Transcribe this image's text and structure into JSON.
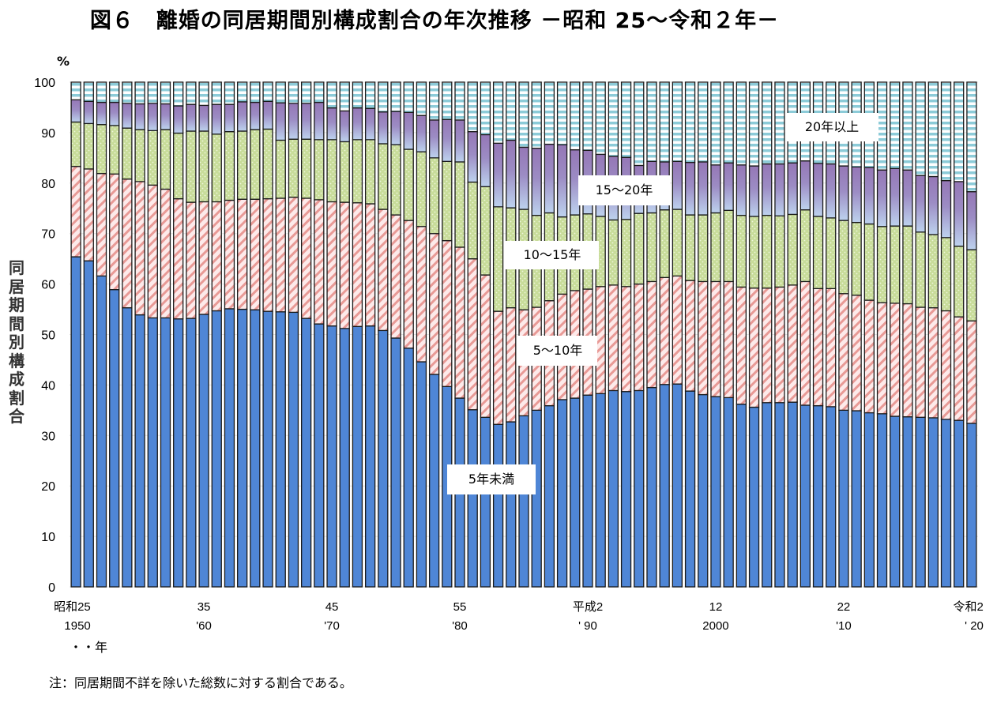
{
  "title": "図６　離婚の同居期間別構成割合の年次推移 －昭和 25～令和２年－",
  "footnote": "注：同居期間不詳を除いた総数に対する割合である。",
  "unit_note": "・・年",
  "chart_data": {
    "type": "bar",
    "stacked": true,
    "title": "図６　離婚の同居期間別構成割合の年次推移 －昭和 25～令和２年－",
    "ylabel": "同居期間別構成割合",
    "yunit": "%",
    "ylim": [
      0,
      100
    ],
    "yticks": [
      0,
      10,
      20,
      30,
      40,
      50,
      60,
      70,
      80,
      90,
      100
    ],
    "grid": true,
    "legend": "inline-labels",
    "x": [
      1950,
      1951,
      1952,
      1953,
      1954,
      1955,
      1956,
      1957,
      1958,
      1959,
      1960,
      1961,
      1962,
      1963,
      1964,
      1965,
      1966,
      1967,
      1968,
      1969,
      1970,
      1971,
      1972,
      1973,
      1974,
      1975,
      1976,
      1977,
      1978,
      1979,
      1980,
      1981,
      1982,
      1983,
      1984,
      1985,
      1986,
      1987,
      1988,
      1989,
      1990,
      1991,
      1992,
      1993,
      1994,
      1995,
      1996,
      1997,
      1998,
      1999,
      2000,
      2001,
      2002,
      2003,
      2004,
      2005,
      2006,
      2007,
      2008,
      2009,
      2010,
      2011,
      2012,
      2013,
      2014,
      2015,
      2016,
      2017,
      2018,
      2019,
      2020
    ],
    "xtick_labels": [
      {
        "x": 1950,
        "line1": "昭和25",
        "line2": "1950"
      },
      {
        "x": 1960,
        "line1": "35",
        "line2": "'60"
      },
      {
        "x": 1970,
        "line1": "45",
        "line2": "'70"
      },
      {
        "x": 1980,
        "line1": "55",
        "line2": "'80"
      },
      {
        "x": 1990,
        "line1": "平成2",
        "line2": "' 90"
      },
      {
        "x": 2000,
        "line1": "12",
        "line2": "2000"
      },
      {
        "x": 2010,
        "line1": "22",
        "line2": "'10"
      },
      {
        "x": 2020,
        "line1": "令和2",
        "line2": "' 20"
      }
    ],
    "series": [
      {
        "name": "5年未満",
        "color": "#4f86d6",
        "pattern": "solid",
        "values": [
          65.4,
          64.6,
          61.6,
          58.9,
          55.3,
          53.9,
          53.3,
          53.3,
          53.1,
          53.2,
          54.0,
          54.7,
          55.1,
          55.0,
          54.9,
          54.6,
          54.5,
          54.4,
          53.2,
          52.1,
          51.7,
          51.2,
          51.6,
          51.7,
          50.8,
          49.3,
          47.3,
          44.6,
          42.1,
          39.7,
          37.4,
          35.1,
          33.6,
          32.2,
          32.7,
          33.9,
          35.0,
          35.9,
          37.1,
          37.4,
          38.0,
          38.3,
          38.9,
          38.7,
          38.9,
          39.5,
          40.1,
          40.2,
          38.8,
          38.1,
          37.7,
          37.5,
          36.2,
          35.6,
          36.5,
          36.5,
          36.6,
          36.0,
          35.9,
          35.7,
          35.0,
          34.9,
          34.5,
          34.3,
          33.8,
          33.7,
          33.6,
          33.5,
          33.2,
          33.0,
          32.4
        ]
      },
      {
        "name": "5～10年",
        "color": "#e8817c",
        "pattern": "diagonal",
        "values": [
          17.9,
          18.2,
          20.3,
          22.9,
          25.5,
          26.4,
          26.3,
          25.5,
          23.8,
          23.0,
          22.3,
          21.6,
          21.5,
          21.8,
          21.9,
          22.3,
          22.5,
          22.8,
          23.8,
          24.6,
          24.6,
          25.0,
          24.5,
          24.2,
          24.0,
          24.4,
          25.3,
          26.8,
          27.9,
          28.9,
          29.9,
          29.9,
          28.2,
          22.4,
          22.6,
          21.0,
          20.4,
          20.8,
          20.9,
          21.3,
          21.0,
          21.2,
          20.9,
          20.8,
          21.1,
          21.0,
          21.2,
          21.4,
          21.9,
          22.4,
          22.8,
          23.0,
          23.2,
          23.6,
          22.7,
          22.9,
          23.2,
          24.5,
          23.2,
          23.4,
          23.1,
          22.9,
          22.3,
          22.0,
          22.4,
          22.4,
          21.8,
          21.8,
          21.5,
          20.5,
          20.3
        ]
      },
      {
        "name": "10～15年",
        "color": "#c5dc98",
        "pattern": "dots",
        "values": [
          8.8,
          9.0,
          9.7,
          9.6,
          10.1,
          10.3,
          10.8,
          11.8,
          13.0,
          14.1,
          14.0,
          13.4,
          13.6,
          13.5,
          13.8,
          13.8,
          11.5,
          11.5,
          11.7,
          11.9,
          12.3,
          12.0,
          12.5,
          12.7,
          13.0,
          13.9,
          14.1,
          14.8,
          15.0,
          15.7,
          16.9,
          15.2,
          17.5,
          20.7,
          19.8,
          19.9,
          18.2,
          17.4,
          15.3,
          15.0,
          14.9,
          13.9,
          12.9,
          13.3,
          14.0,
          13.6,
          13.4,
          13.2,
          13.0,
          13.2,
          13.6,
          14.1,
          14.2,
          14.2,
          14.4,
          14.1,
          14.0,
          14.2,
          14.3,
          14.0,
          14.5,
          14.4,
          15.1,
          15.1,
          15.3,
          15.4,
          14.9,
          14.5,
          14.5,
          14.0,
          14.1
        ]
      },
      {
        "name": "15～20年",
        "color": "#9b86c0",
        "pattern": "gradient",
        "values": [
          4.4,
          4.4,
          4.4,
          4.6,
          4.9,
          5.1,
          5.4,
          5.1,
          5.4,
          5.3,
          5.1,
          5.9,
          5.4,
          5.8,
          5.4,
          5.5,
          7.4,
          7.1,
          7.1,
          7.4,
          6.3,
          6.1,
          6.3,
          6.2,
          6.3,
          6.6,
          7.3,
          7.2,
          7.5,
          8.3,
          8.3,
          10.0,
          10.3,
          12.6,
          13.4,
          12.3,
          13.3,
          13.6,
          14.3,
          12.9,
          12.6,
          12.3,
          12.6,
          12.3,
          9.5,
          10.2,
          9.5,
          9.5,
          10.4,
          10.5,
          9.5,
          9.4,
          10.0,
          10.0,
          10.2,
          10.3,
          10.2,
          9.7,
          10.5,
          10.7,
          10.8,
          11.0,
          11.2,
          11.2,
          11.4,
          11.1,
          11.2,
          11.5,
          11.3,
          12.8,
          11.5
        ]
      },
      {
        "name": "20年以上",
        "color": "#8ccbd8",
        "pattern": "horizontal",
        "values": [
          3.5,
          3.8,
          4.0,
          4.0,
          4.2,
          4.3,
          4.2,
          4.3,
          4.7,
          4.4,
          4.6,
          4.4,
          4.4,
          3.9,
          4.0,
          3.8,
          4.1,
          4.2,
          4.2,
          4.0,
          5.1,
          5.7,
          5.1,
          5.2,
          5.9,
          5.8,
          6.0,
          6.6,
          7.5,
          7.4,
          7.5,
          9.8,
          10.4,
          12.1,
          11.5,
          12.9,
          13.1,
          12.3,
          12.4,
          13.4,
          13.5,
          14.3,
          14.7,
          14.9,
          16.5,
          15.7,
          15.8,
          15.7,
          15.9,
          15.8,
          16.4,
          16.0,
          16.4,
          16.6,
          16.2,
          16.2,
          16.0,
          15.6,
          16.1,
          16.2,
          16.6,
          16.8,
          16.9,
          17.4,
          17.1,
          17.4,
          18.5,
          18.7,
          19.5,
          19.7,
          21.7
        ]
      }
    ],
    "series_labels": [
      {
        "series": "20年以上",
        "text": "20年以上"
      },
      {
        "series": "15～20年",
        "text": "15～20年"
      },
      {
        "series": "10～15年",
        "text": "10～15年"
      },
      {
        "series": "5～10年",
        "text": "5～10年"
      },
      {
        "series": "5年未満",
        "text": "5年未満"
      }
    ]
  }
}
